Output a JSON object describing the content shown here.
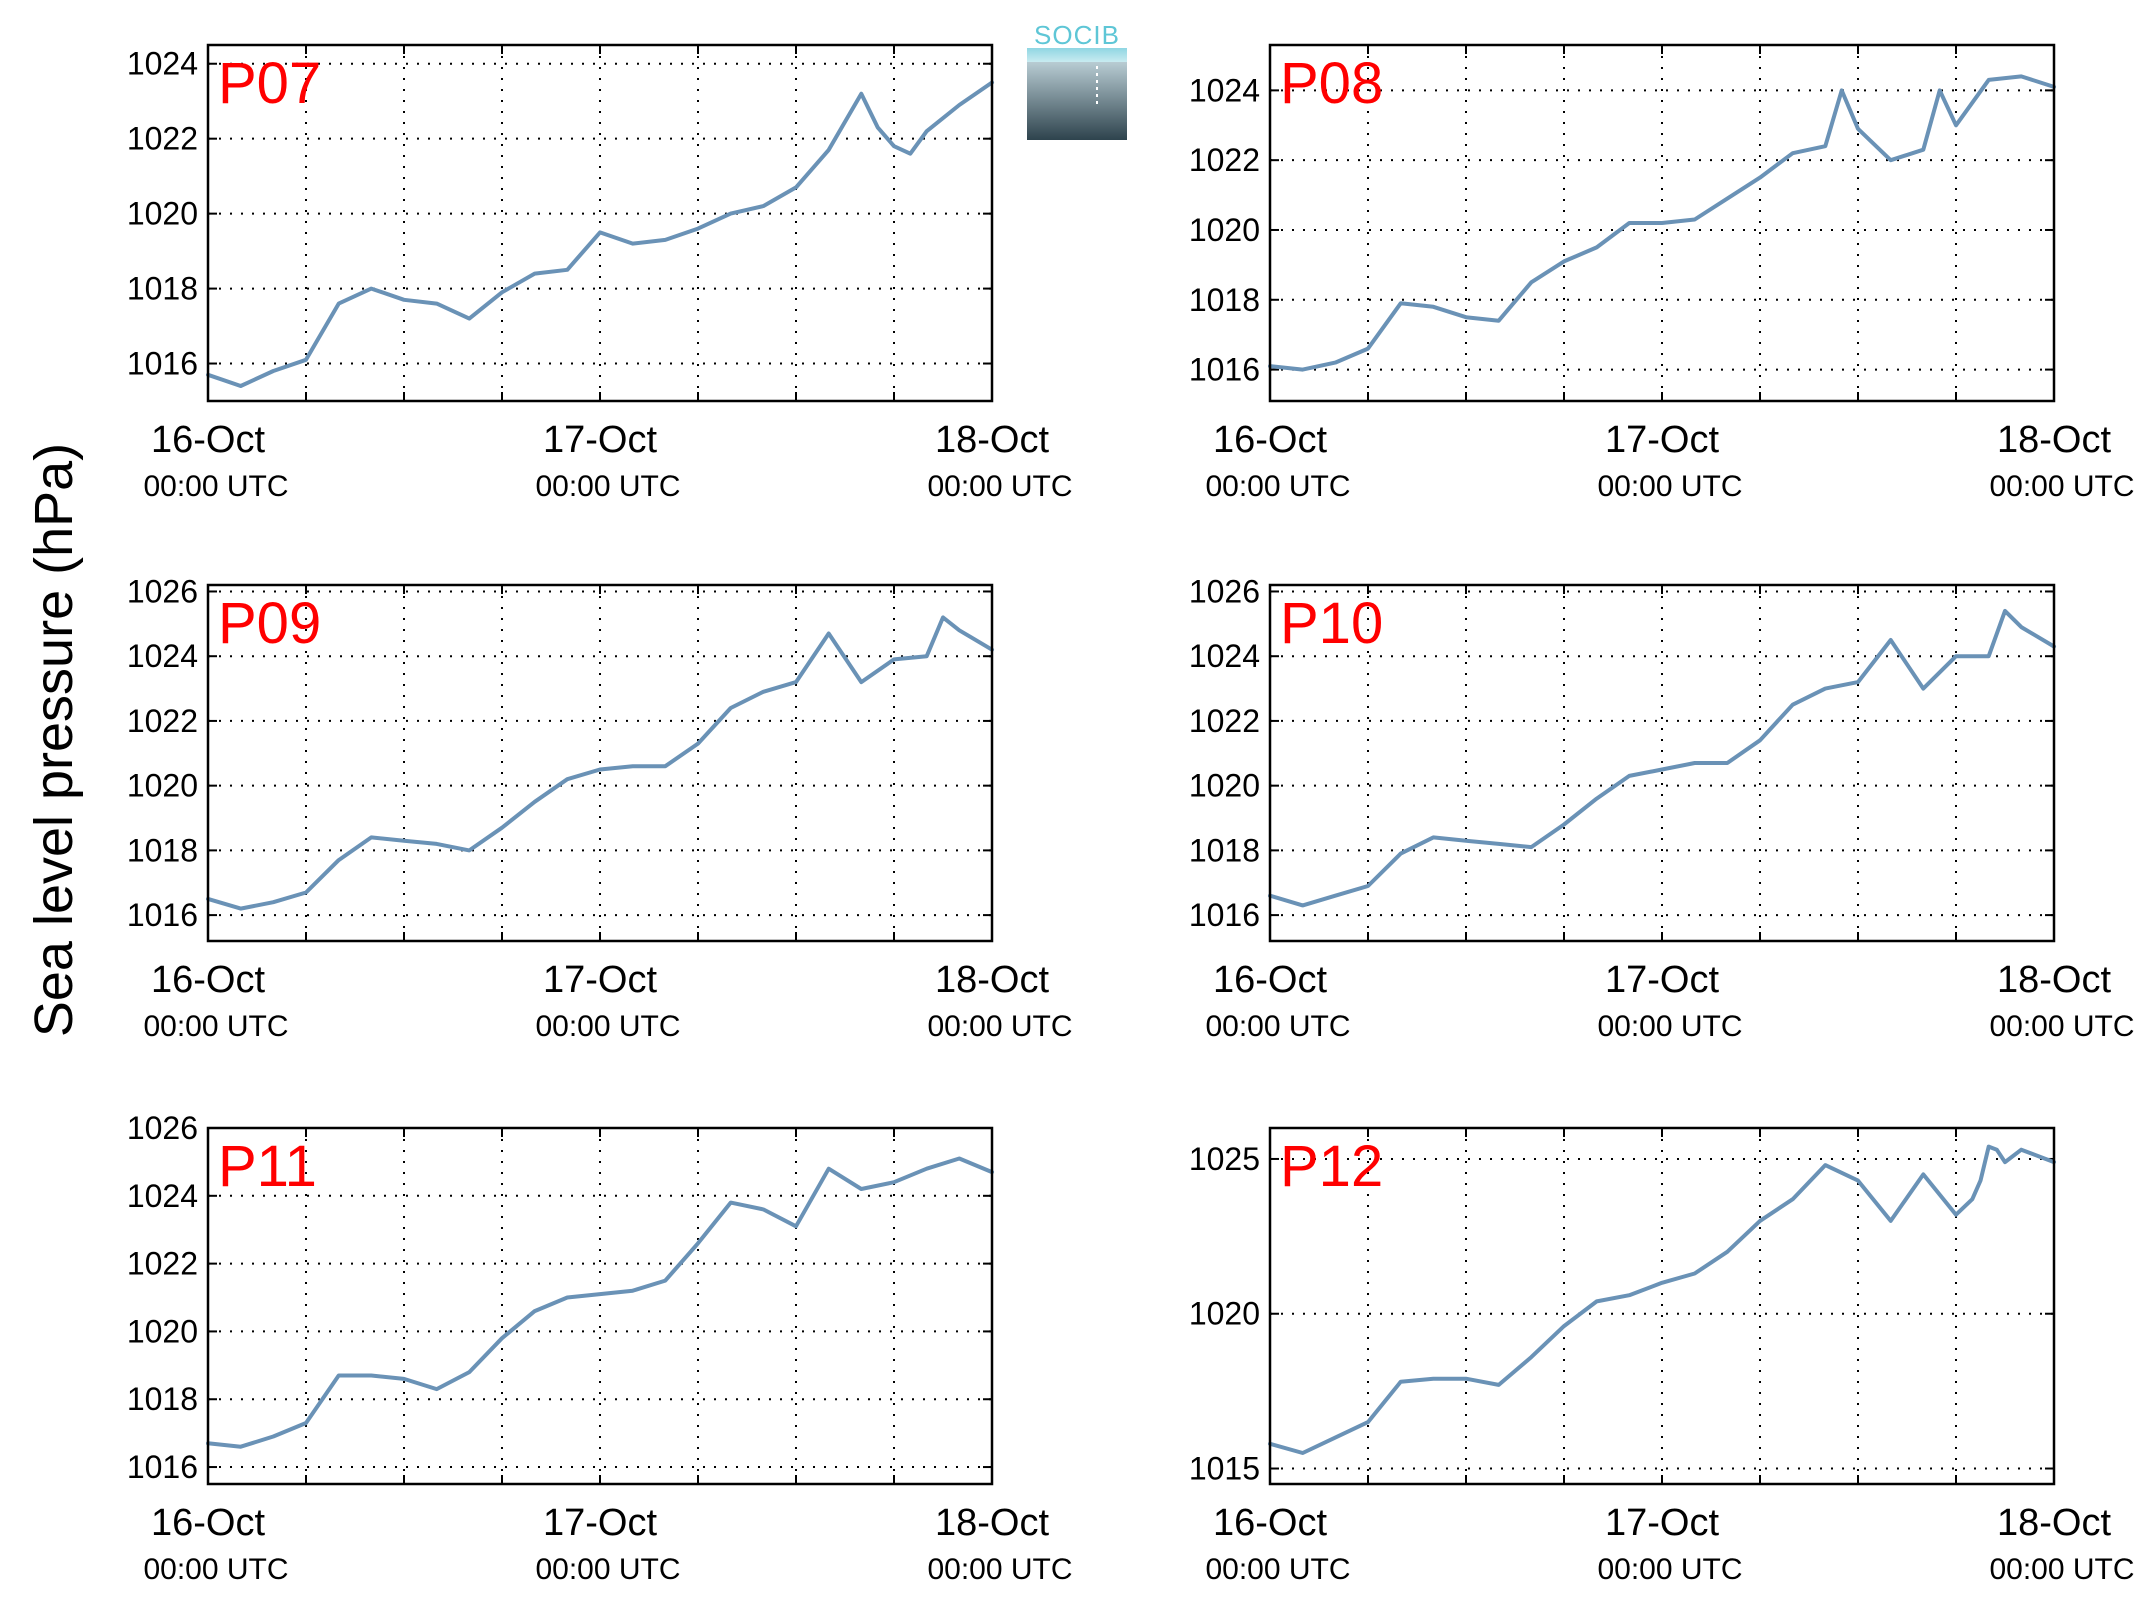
{
  "figure": {
    "ylabel": "Sea level pressure (hPa)",
    "logo_text": "SOCIB",
    "line_color": "#6a92b6",
    "label_color": "#ff0000"
  },
  "chart_data": [
    {
      "type": "line",
      "title": "P07",
      "x_ticks": [
        "16-Oct 00:00 UTC",
        "17-Oct 00:00 UTC",
        "18-Oct 00:00 UTC"
      ],
      "x_tick_dates": [
        "16-Oct",
        "17-Oct",
        "18-Oct"
      ],
      "x_tick_times": [
        "00:00 UTC",
        "00:00 UTC",
        "00:00 UTC"
      ],
      "xlim": [
        "2015-10-16 00:00",
        "2015-10-18 00:00"
      ],
      "ylim": [
        1015,
        1024.5
      ],
      "y_ticks": [
        1016,
        1018,
        1020,
        1022,
        1024
      ],
      "grid": true,
      "series": [
        {
          "x": [
            "2015-10-16 00:00",
            "2015-10-16 02:00",
            "2015-10-16 04:00",
            "2015-10-16 06:00",
            "2015-10-16 08:00",
            "2015-10-16 10:00",
            "2015-10-16 12:00",
            "2015-10-16 14:00",
            "2015-10-16 16:00",
            "2015-10-16 18:00",
            "2015-10-16 20:00",
            "2015-10-16 22:00",
            "2015-10-17 00:00",
            "2015-10-17 02:00",
            "2015-10-17 04:00",
            "2015-10-17 06:00",
            "2015-10-17 08:00",
            "2015-10-17 10:00",
            "2015-10-17 12:00",
            "2015-10-17 14:00",
            "2015-10-17 16:00",
            "2015-10-17 17:00",
            "2015-10-17 18:00",
            "2015-10-17 19:00",
            "2015-10-17 20:00",
            "2015-10-17 22:00",
            "2015-10-18 00:00"
          ],
          "values": [
            1015.7,
            1015.4,
            1015.8,
            1016.1,
            1017.6,
            1018.0,
            1017.7,
            1017.6,
            1017.2,
            1017.9,
            1018.4,
            1018.5,
            1019.5,
            1019.2,
            1019.3,
            1019.6,
            1020.0,
            1020.2,
            1020.7,
            1021.7,
            1023.2,
            1022.3,
            1021.8,
            1021.6,
            1022.2,
            1022.9,
            1023.5
          ]
        }
      ]
    },
    {
      "type": "line",
      "title": "P08",
      "x_ticks": [
        "16-Oct 00:00 UTC",
        "17-Oct 00:00 UTC",
        "18-Oct 00:00 UTC"
      ],
      "x_tick_dates": [
        "16-Oct",
        "17-Oct",
        "18-Oct"
      ],
      "x_tick_times": [
        "00:00 UTC",
        "00:00 UTC",
        "00:00 UTC"
      ],
      "xlim": [
        "2015-10-16 00:00",
        "2015-10-18 00:00"
      ],
      "ylim": [
        1015.1,
        1025.3
      ],
      "y_ticks": [
        1016,
        1018,
        1020,
        1022,
        1024
      ],
      "grid": true,
      "series": [
        {
          "x": [
            "2015-10-16 00:00",
            "2015-10-16 02:00",
            "2015-10-16 04:00",
            "2015-10-16 06:00",
            "2015-10-16 08:00",
            "2015-10-16 10:00",
            "2015-10-16 12:00",
            "2015-10-16 14:00",
            "2015-10-16 16:00",
            "2015-10-16 18:00",
            "2015-10-16 20:00",
            "2015-10-16 22:00",
            "2015-10-17 00:00",
            "2015-10-17 02:00",
            "2015-10-17 04:00",
            "2015-10-17 06:00",
            "2015-10-17 08:00",
            "2015-10-17 10:00",
            "2015-10-17 11:00",
            "2015-10-17 12:00",
            "2015-10-17 14:00",
            "2015-10-17 16:00",
            "2015-10-17 17:00",
            "2015-10-17 18:00",
            "2015-10-17 20:00",
            "2015-10-17 22:00",
            "2015-10-18 00:00"
          ],
          "values": [
            1016.1,
            1016.0,
            1016.2,
            1016.6,
            1017.9,
            1017.8,
            1017.5,
            1017.4,
            1018.5,
            1019.1,
            1019.5,
            1020.2,
            1020.2,
            1020.3,
            1020.9,
            1021.5,
            1022.2,
            1022.4,
            1024.0,
            1022.9,
            1022.0,
            1022.3,
            1024.0,
            1023.0,
            1024.3,
            1024.4,
            1024.1
          ]
        }
      ]
    },
    {
      "type": "line",
      "title": "P09",
      "x_ticks": [
        "16-Oct 00:00 UTC",
        "17-Oct 00:00 UTC",
        "18-Oct 00:00 UTC"
      ],
      "x_tick_dates": [
        "16-Oct",
        "17-Oct",
        "18-Oct"
      ],
      "x_tick_times": [
        "00:00 UTC",
        "00:00 UTC",
        "00:00 UTC"
      ],
      "xlim": [
        "2015-10-16 00:00",
        "2015-10-18 00:00"
      ],
      "ylim": [
        1015.2,
        1026.2
      ],
      "y_ticks": [
        1016,
        1018,
        1020,
        1022,
        1024,
        1026
      ],
      "grid": true,
      "series": [
        {
          "x": [
            "2015-10-16 00:00",
            "2015-10-16 02:00",
            "2015-10-16 04:00",
            "2015-10-16 06:00",
            "2015-10-16 08:00",
            "2015-10-16 10:00",
            "2015-10-16 12:00",
            "2015-10-16 14:00",
            "2015-10-16 16:00",
            "2015-10-16 18:00",
            "2015-10-16 20:00",
            "2015-10-16 22:00",
            "2015-10-17 00:00",
            "2015-10-17 02:00",
            "2015-10-17 04:00",
            "2015-10-17 06:00",
            "2015-10-17 08:00",
            "2015-10-17 10:00",
            "2015-10-17 12:00",
            "2015-10-17 14:00",
            "2015-10-17 16:00",
            "2015-10-17 18:00",
            "2015-10-17 20:00",
            "2015-10-17 21:00",
            "2015-10-17 22:00",
            "2015-10-18 00:00"
          ],
          "values": [
            1016.5,
            1016.2,
            1016.4,
            1016.7,
            1017.7,
            1018.4,
            1018.3,
            1018.2,
            1018.0,
            1018.7,
            1019.5,
            1020.2,
            1020.5,
            1020.6,
            1020.6,
            1021.3,
            1022.4,
            1022.9,
            1023.2,
            1024.7,
            1023.2,
            1023.9,
            1024.0,
            1025.2,
            1024.8,
            1024.2
          ]
        }
      ]
    },
    {
      "type": "line",
      "title": "P10",
      "x_ticks": [
        "16-Oct 00:00 UTC",
        "17-Oct 00:00 UTC",
        "18-Oct 00:00 UTC"
      ],
      "x_tick_dates": [
        "16-Oct",
        "17-Oct",
        "18-Oct"
      ],
      "x_tick_times": [
        "00:00 UTC",
        "00:00 UTC",
        "00:00 UTC"
      ],
      "xlim": [
        "2015-10-16 00:00",
        "2015-10-18 00:00"
      ],
      "ylim": [
        1015.2,
        1026.2
      ],
      "y_ticks": [
        1016,
        1018,
        1020,
        1022,
        1024,
        1026
      ],
      "grid": true,
      "series": [
        {
          "x": [
            "2015-10-16 00:00",
            "2015-10-16 02:00",
            "2015-10-16 04:00",
            "2015-10-16 06:00",
            "2015-10-16 08:00",
            "2015-10-16 10:00",
            "2015-10-16 12:00",
            "2015-10-16 14:00",
            "2015-10-16 16:00",
            "2015-10-16 18:00",
            "2015-10-16 20:00",
            "2015-10-16 22:00",
            "2015-10-17 00:00",
            "2015-10-17 02:00",
            "2015-10-17 04:00",
            "2015-10-17 06:00",
            "2015-10-17 08:00",
            "2015-10-17 10:00",
            "2015-10-17 12:00",
            "2015-10-17 14:00",
            "2015-10-17 16:00",
            "2015-10-17 18:00",
            "2015-10-17 20:00",
            "2015-10-17 21:00",
            "2015-10-17 22:00",
            "2015-10-18 00:00"
          ],
          "values": [
            1016.6,
            1016.3,
            1016.6,
            1016.9,
            1017.9,
            1018.4,
            1018.3,
            1018.2,
            1018.1,
            1018.8,
            1019.6,
            1020.3,
            1020.5,
            1020.7,
            1020.7,
            1021.4,
            1022.5,
            1023.0,
            1023.2,
            1024.5,
            1023.0,
            1024.0,
            1024.0,
            1025.4,
            1024.9,
            1024.3
          ]
        }
      ]
    },
    {
      "type": "line",
      "title": "P11",
      "x_ticks": [
        "16-Oct 00:00 UTC",
        "17-Oct 00:00 UTC",
        "18-Oct 00:00 UTC"
      ],
      "x_tick_dates": [
        "16-Oct",
        "17-Oct",
        "18-Oct"
      ],
      "x_tick_times": [
        "00:00 UTC",
        "00:00 UTC",
        "00:00 UTC"
      ],
      "xlim": [
        "2015-10-16 00:00",
        "2015-10-18 00:00"
      ],
      "ylim": [
        1015.5,
        1026.0
      ],
      "y_ticks": [
        1016,
        1018,
        1020,
        1022,
        1024,
        1026
      ],
      "grid": true,
      "series": [
        {
          "x": [
            "2015-10-16 00:00",
            "2015-10-16 02:00",
            "2015-10-16 04:00",
            "2015-10-16 06:00",
            "2015-10-16 08:00",
            "2015-10-16 10:00",
            "2015-10-16 12:00",
            "2015-10-16 14:00",
            "2015-10-16 16:00",
            "2015-10-16 18:00",
            "2015-10-16 20:00",
            "2015-10-16 22:00",
            "2015-10-17 00:00",
            "2015-10-17 02:00",
            "2015-10-17 04:00",
            "2015-10-17 06:00",
            "2015-10-17 08:00",
            "2015-10-17 10:00",
            "2015-10-17 12:00",
            "2015-10-17 14:00",
            "2015-10-17 16:00",
            "2015-10-17 18:00",
            "2015-10-17 20:00",
            "2015-10-17 22:00",
            "2015-10-18 00:00"
          ],
          "values": [
            1016.7,
            1016.6,
            1016.9,
            1017.3,
            1018.7,
            1018.7,
            1018.6,
            1018.3,
            1018.8,
            1019.8,
            1020.6,
            1021.0,
            1021.1,
            1021.2,
            1021.5,
            1022.6,
            1023.8,
            1023.6,
            1023.1,
            1024.8,
            1024.2,
            1024.4,
            1024.8,
            1025.1,
            1024.7
          ]
        }
      ]
    },
    {
      "type": "line",
      "title": "P12",
      "x_ticks": [
        "16-Oct 00:00 UTC",
        "17-Oct 00:00 UTC",
        "18-Oct 00:00 UTC"
      ],
      "x_tick_dates": [
        "16-Oct",
        "17-Oct",
        "18-Oct"
      ],
      "x_tick_times": [
        "00:00 UTC",
        "00:00 UTC",
        "00:00 UTC"
      ],
      "xlim": [
        "2015-10-16 00:00",
        "2015-10-18 00:00"
      ],
      "ylim": [
        1014.5,
        1026.0
      ],
      "y_ticks": [
        1015,
        1020,
        1025
      ],
      "grid": true,
      "series": [
        {
          "x": [
            "2015-10-16 00:00",
            "2015-10-16 02:00",
            "2015-10-16 04:00",
            "2015-10-16 06:00",
            "2015-10-16 08:00",
            "2015-10-16 10:00",
            "2015-10-16 12:00",
            "2015-10-16 14:00",
            "2015-10-16 16:00",
            "2015-10-16 18:00",
            "2015-10-16 20:00",
            "2015-10-16 22:00",
            "2015-10-17 00:00",
            "2015-10-17 02:00",
            "2015-10-17 04:00",
            "2015-10-17 06:00",
            "2015-10-17 08:00",
            "2015-10-17 10:00",
            "2015-10-17 12:00",
            "2015-10-17 14:00",
            "2015-10-17 16:00",
            "2015-10-17 18:00",
            "2015-10-17 19:00",
            "2015-10-17 19:30",
            "2015-10-17 20:00",
            "2015-10-17 20:30",
            "2015-10-17 21:00",
            "2015-10-17 22:00",
            "2015-10-18 00:00"
          ],
          "values": [
            1015.8,
            1015.5,
            1016.0,
            1016.5,
            1017.8,
            1017.9,
            1017.9,
            1017.7,
            1018.6,
            1019.6,
            1020.4,
            1020.6,
            1021.0,
            1021.3,
            1022.0,
            1023.0,
            1023.7,
            1024.8,
            1024.3,
            1023.0,
            1024.5,
            1023.2,
            1023.7,
            1024.3,
            1025.4,
            1025.3,
            1024.9,
            1025.3,
            1024.9
          ]
        }
      ]
    }
  ]
}
